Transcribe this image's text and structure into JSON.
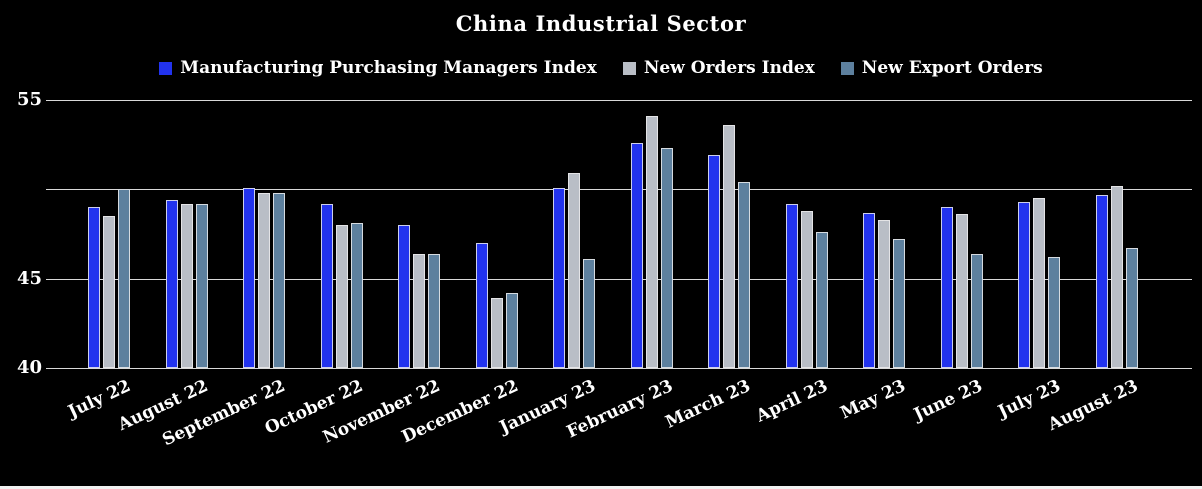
{
  "chart_data": {
    "type": "bar",
    "title": "China Industrial Sector",
    "categories": [
      "July 22",
      "August 22",
      "September 22",
      "October 22",
      "November 22",
      "December 22",
      "January 23",
      "February 23",
      "March 23",
      "April 23",
      "May 23",
      "June 23",
      "July 23",
      "August 23"
    ],
    "series": [
      {
        "name": "Manufacturing Purchasing Managers Index",
        "color": "#2233ee",
        "values": [
          49.0,
          49.4,
          50.1,
          49.2,
          48.0,
          47.0,
          50.1,
          52.6,
          51.9,
          49.2,
          48.7,
          49.0,
          49.3,
          49.7
        ]
      },
      {
        "name": "New Orders Index",
        "color": "#b9bec6",
        "values": [
          48.5,
          49.2,
          49.8,
          48.0,
          46.4,
          43.9,
          50.9,
          54.1,
          53.6,
          48.8,
          48.3,
          48.6,
          49.5,
          50.2
        ]
      },
      {
        "name": "New Export Orders",
        "color": "#5d809e",
        "values": [
          50.0,
          49.2,
          49.8,
          48.1,
          46.4,
          44.2,
          46.1,
          52.3,
          50.4,
          47.6,
          47.2,
          46.4,
          46.2,
          46.7
        ]
      }
    ],
    "ylim": [
      40,
      55
    ],
    "yticks": [
      55,
      45,
      40
    ],
    "gridlines": [
      55,
      50,
      45,
      40
    ],
    "legend_position": "top",
    "grid": true,
    "background_color": "#000000",
    "text_color": "#ffffff"
  }
}
